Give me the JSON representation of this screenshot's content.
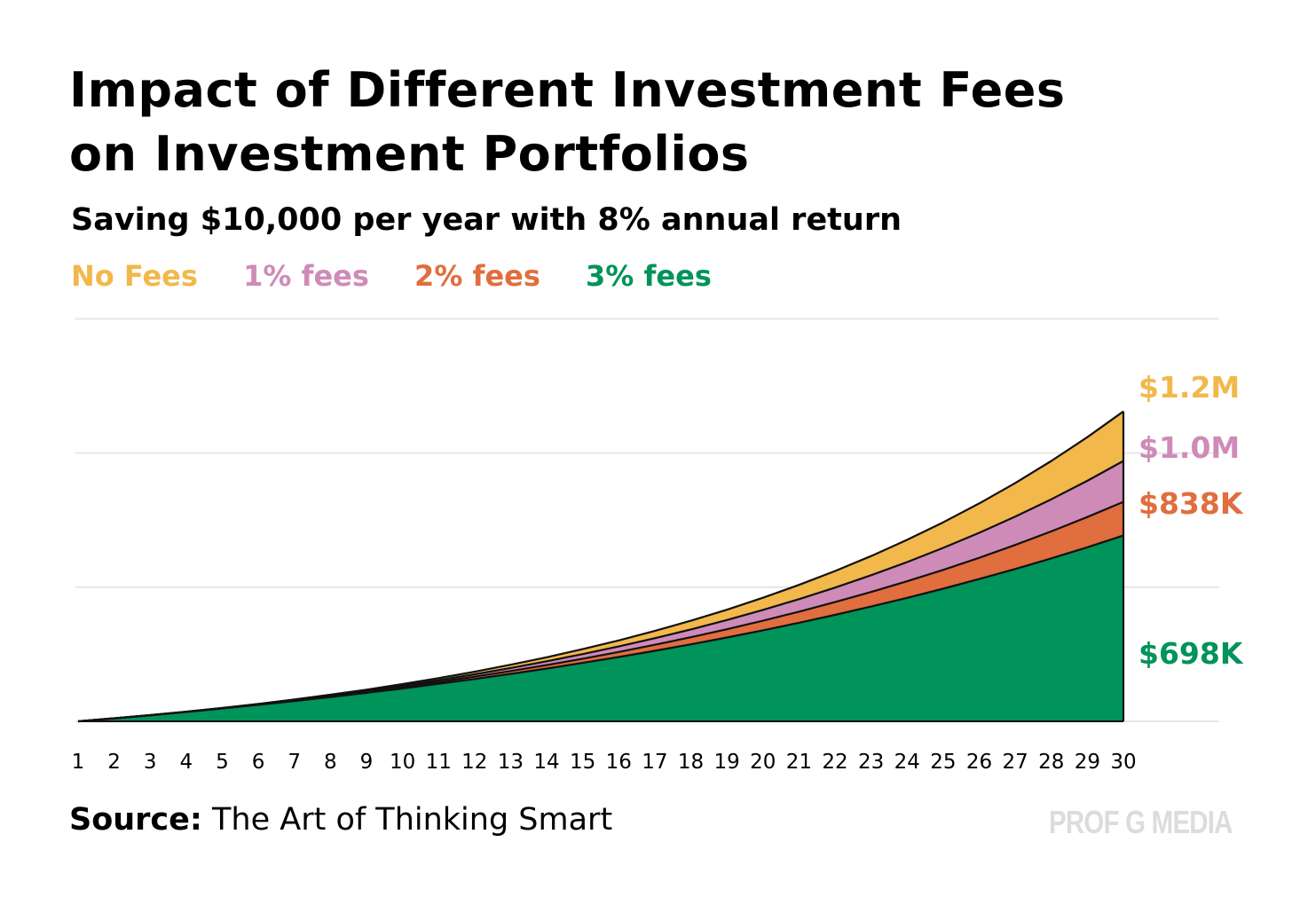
{
  "header": {
    "title_line1": "Impact of Different Investment Fees",
    "title_line2": "on Investment Portfolios",
    "subtitle": "Saving $10,000 per year with 8% annual return"
  },
  "footer": {
    "source_label": "Source:",
    "source_text": " The Art of Thinking Smart",
    "brand": "PROF G MEDIA"
  },
  "chart_data": {
    "type": "area",
    "title": "Impact of Different Investment Fees on Investment Portfolios",
    "subtitle": "Saving $10,000 per year with 8% annual return",
    "xlabel": "",
    "ylabel": "",
    "x": [
      1,
      2,
      3,
      4,
      5,
      6,
      7,
      8,
      9,
      10,
      11,
      12,
      13,
      14,
      15,
      16,
      17,
      18,
      19,
      20,
      21,
      22,
      23,
      24,
      25,
      26,
      27,
      28,
      29,
      30
    ],
    "ylim": [
      0,
      1350000
    ],
    "grid": true,
    "legend_position": "top-left",
    "series": [
      {
        "name": "No Fees",
        "color": "#f2b84b",
        "end_label": "$1.2M",
        "annual_return": 0.08,
        "fee": 0.0
      },
      {
        "name": "1% fees",
        "color": "#cf8bb8",
        "end_label": "$1.0M",
        "annual_return": 0.08,
        "fee": 0.01
      },
      {
        "name": "2% fees",
        "color": "#e06e3e",
        "end_label": "$838K",
        "annual_return": 0.08,
        "fee": 0.02
      },
      {
        "name": "3% fees",
        "color": "#00935a",
        "end_label": "$698K",
        "annual_return": 0.08,
        "fee": 0.03
      }
    ],
    "annual_contribution": 10000,
    "values_note": "values computed from contribution, return and fee; final values approx 1.22M, 1.02M, 0.84M, 0.70M"
  }
}
